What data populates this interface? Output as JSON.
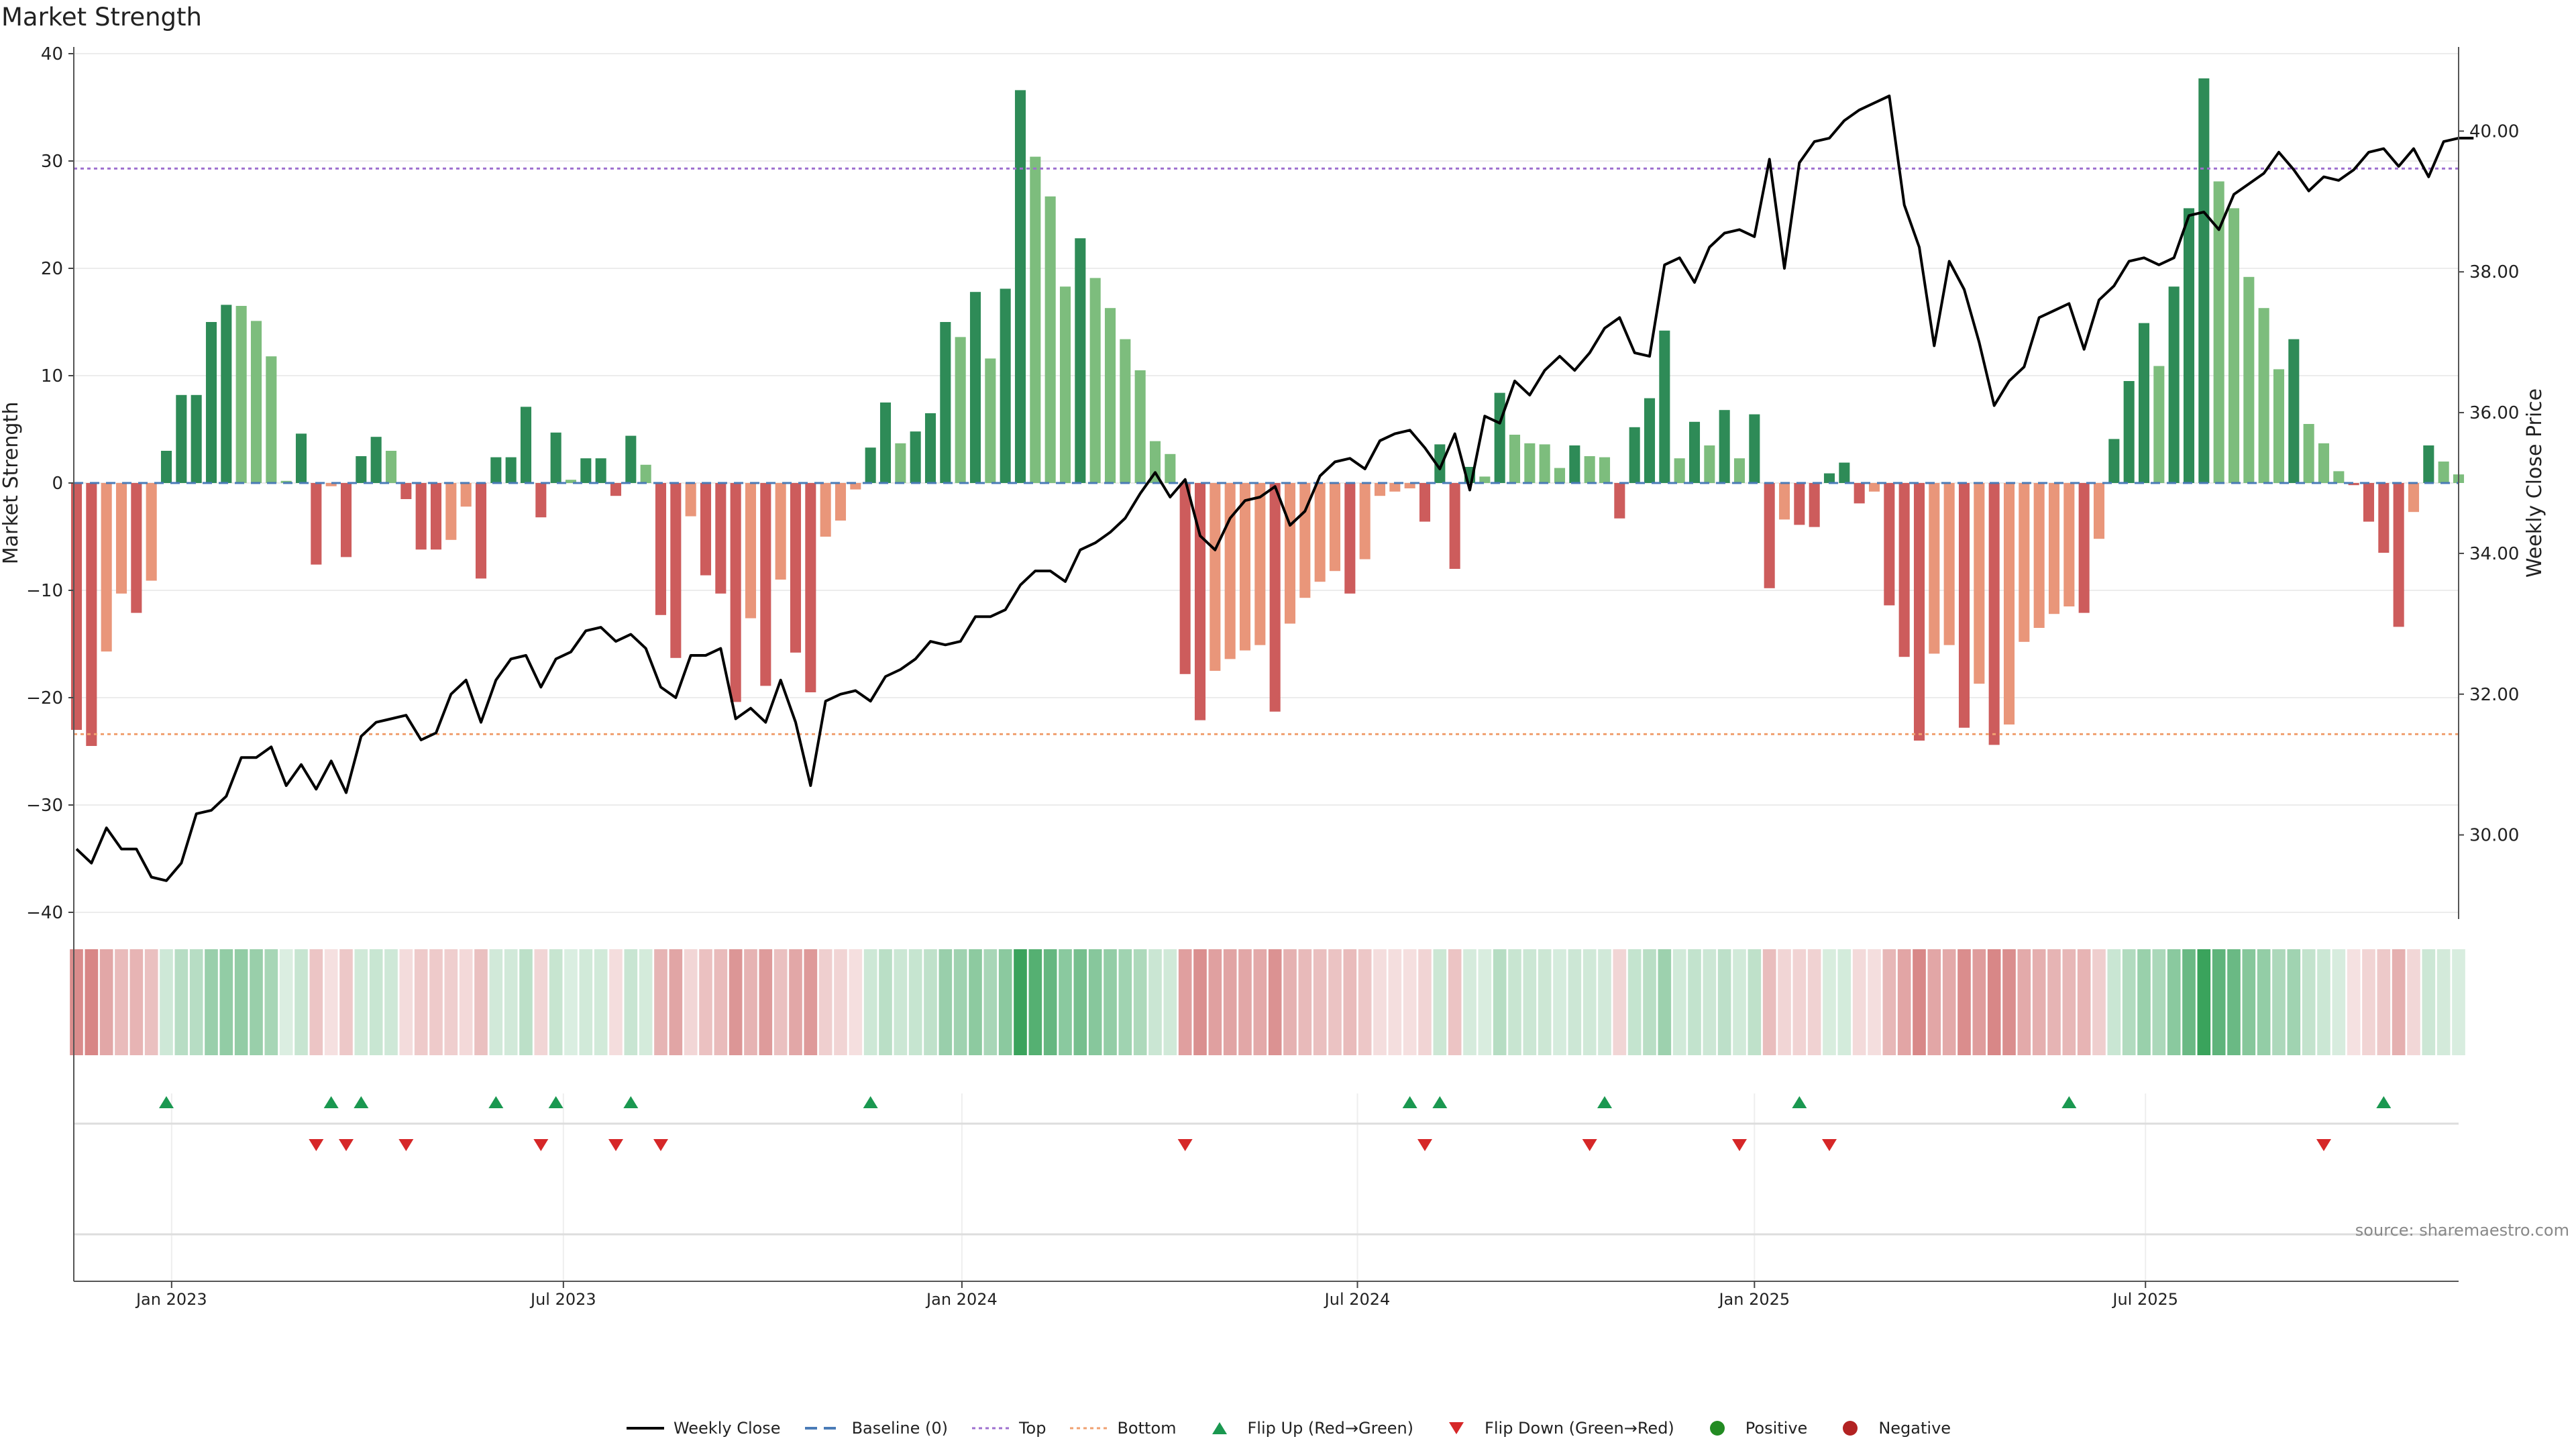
{
  "title": "Market Strength",
  "source": "source: sharemaestro.com",
  "chart_data": {
    "type": "bar",
    "ylabel_left": "Market Strength",
    "ylabel_right": "Weekly Close Price",
    "ylim_left": [
      -40,
      40
    ],
    "yticks_left": [
      "40",
      "30",
      "20",
      "10",
      "0",
      "−10",
      "−20",
      "−30",
      "−40"
    ],
    "ylim_right": [
      28.9,
      41.1
    ],
    "yticks_right": [
      "40.00",
      "38.00",
      "36.00",
      "34.00",
      "32.00",
      "30.00"
    ],
    "xtick_labels": [
      "Jan 2023",
      "Jul 2023",
      "Jan 2024",
      "Jul 2024",
      "Jan 2025",
      "Jul 2025"
    ],
    "top_line": 29.3,
    "bottom_line": -23.4,
    "strength": [
      -23,
      -24.5,
      -15.7,
      -10.3,
      -12.1,
      -9.1,
      3,
      8.2,
      8.2,
      15,
      16.6,
      16.5,
      15.1,
      11.8,
      0.2,
      4.6,
      -7.6,
      -0.3,
      -6.9,
      2.5,
      4.3,
      3,
      -1.5,
      -6.2,
      -6.2,
      -5.3,
      -2.2,
      -8.9,
      2.4,
      2.4,
      7.1,
      -3.2,
      4.7,
      0.3,
      2.3,
      2.3,
      -1.2,
      4.4,
      1.7,
      -12.3,
      -16.3,
      -3.1,
      -8.6,
      -10.3,
      -20.4,
      -12.6,
      -18.9,
      -9,
      -15.8,
      -19.5,
      -5,
      -3.5,
      -0.6,
      3.3,
      7.5,
      3.7,
      4.8,
      6.5,
      15,
      13.6,
      17.8,
      11.6,
      18.1,
      36.6,
      30.4,
      26.7,
      18.3,
      22.8,
      19.1,
      16.3,
      13.4,
      10.5,
      3.9,
      2.7,
      -17.8,
      -22.1,
      -17.5,
      -16.4,
      -15.6,
      -15.1,
      -21.3,
      -13.1,
      -10.7,
      -9.2,
      -8.2,
      -10.3,
      -7.1,
      -1.2,
      -0.8,
      -0.5,
      -3.6,
      3.6,
      -8,
      1.5,
      0.6,
      8.4,
      4.5,
      3.7,
      3.6,
      1.4,
      3.5,
      2.5,
      2.4,
      -3.3,
      5.2,
      7.9,
      14.2,
      2.3,
      5.7,
      3.5,
      6.8,
      2.3,
      6.4,
      -9.8,
      -3.4,
      -3.9,
      -4.1,
      0.9,
      1.9,
      -1.9,
      -0.8,
      -11.4,
      -16.2,
      -24,
      -15.9,
      -15.1,
      -22.8,
      -18.7,
      -24.4,
      -22.5,
      -14.8,
      -13.5,
      -12.2,
      -11.5,
      -12.1,
      -5.2,
      4.1,
      9.5,
      14.9,
      10.9,
      18.3,
      25.6,
      37.7,
      28.1,
      25.6,
      19.2,
      16.3,
      10.6,
      13.4,
      5.5,
      3.7,
      1.1,
      -0.2,
      -3.6,
      -6.5,
      -13.4,
      -2.7,
      3.5,
      2,
      0.8
    ],
    "weekly_close": [
      29.8,
      29.6,
      30.1,
      29.8,
      29.8,
      29.4,
      29.35,
      29.6,
      30.3,
      30.35,
      30.55,
      31.1,
      31.1,
      31.25,
      30.7,
      31,
      30.65,
      31.05,
      30.6,
      31.4,
      31.6,
      31.65,
      31.7,
      31.35,
      31.45,
      32,
      32.2,
      31.6,
      32.2,
      32.5,
      32.55,
      32.1,
      32.5,
      32.6,
      32.9,
      32.95,
      32.75,
      32.85,
      32.65,
      32.1,
      31.95,
      32.55,
      32.55,
      32.65,
      31.65,
      31.8,
      31.6,
      32.2,
      31.6,
      30.7,
      31.9,
      32,
      32.05,
      31.9,
      32.25,
      32.35,
      32.5,
      32.75,
      32.7,
      32.75,
      33.1,
      33.1,
      33.2,
      33.55,
      33.75,
      33.75,
      33.6,
      34.05,
      34.15,
      34.3,
      34.5,
      34.85,
      35.15,
      34.8,
      35.05,
      34.25,
      34.05,
      34.5,
      34.75,
      34.8,
      34.95,
      34.4,
      34.6,
      35.1,
      35.3,
      35.35,
      35.2,
      35.6,
      35.7,
      35.75,
      35.5,
      35.2,
      35.7,
      34.9,
      35.95,
      35.85,
      36.45,
      36.25,
      36.6,
      36.8,
      36.6,
      36.85,
      37.2,
      37.35,
      36.85,
      36.8,
      38.1,
      38.2,
      37.85,
      38.35,
      38.55,
      38.6,
      38.5,
      39.6,
      38.05,
      39.55,
      39.85,
      39.9,
      40.15,
      40.3,
      40.4,
      40.5,
      38.95,
      38.35,
      36.95,
      38.15,
      37.75,
      37,
      36.1,
      36.45,
      36.65,
      37.35,
      37.45,
      37.55,
      36.9,
      37.6,
      37.8,
      38.15,
      38.2,
      38.1,
      38.2,
      38.8,
      38.85,
      38.6,
      39.1,
      39.25,
      39.4,
      39.7,
      39.45,
      39.15,
      39.35,
      39.3,
      39.45,
      39.7,
      39.75,
      39.5,
      39.75,
      39.35,
      39.85,
      39.9,
      39.9
    ],
    "flip_up_idx": [
      6,
      17,
      19,
      28,
      32,
      37,
      53,
      89,
      91,
      102,
      115,
      133,
      154
    ],
    "flip_down_idx": [
      16,
      18,
      22,
      31,
      36,
      39,
      74,
      90,
      101,
      111,
      117,
      150
    ],
    "colors": {
      "strong_green": "#2e8b57",
      "light_green": "#7dbd7d",
      "strong_red": "#cd5c5c",
      "light_red": "#e9967a",
      "weekly_close": "#000000",
      "baseline": "#4a7bb7",
      "top": "#9e6fcf",
      "bottom": "#f0a070",
      "flip_up": "#1a9850",
      "flip_down": "#d62728",
      "positive": "#228b22",
      "negative": "#b22222"
    },
    "legend": [
      {
        "label": "Weekly Close",
        "icon": "line",
        "color": "#000000"
      },
      {
        "label": "Baseline (0)",
        "icon": "dash",
        "color": "#4a7bb7"
      },
      {
        "label": "Top",
        "icon": "dot-line",
        "color": "#9e6fcf"
      },
      {
        "label": "Bottom",
        "icon": "dot-line",
        "color": "#f0a070"
      },
      {
        "label": "Flip Up (Red→Green)",
        "icon": "triangle-up",
        "color": "#1a9850"
      },
      {
        "label": "Flip Down (Green→Red)",
        "icon": "triangle-down",
        "color": "#d62728"
      },
      {
        "label": "Positive",
        "icon": "circle",
        "color": "#228b22"
      },
      {
        "label": "Negative",
        "icon": "circle",
        "color": "#b22222"
      }
    ]
  }
}
